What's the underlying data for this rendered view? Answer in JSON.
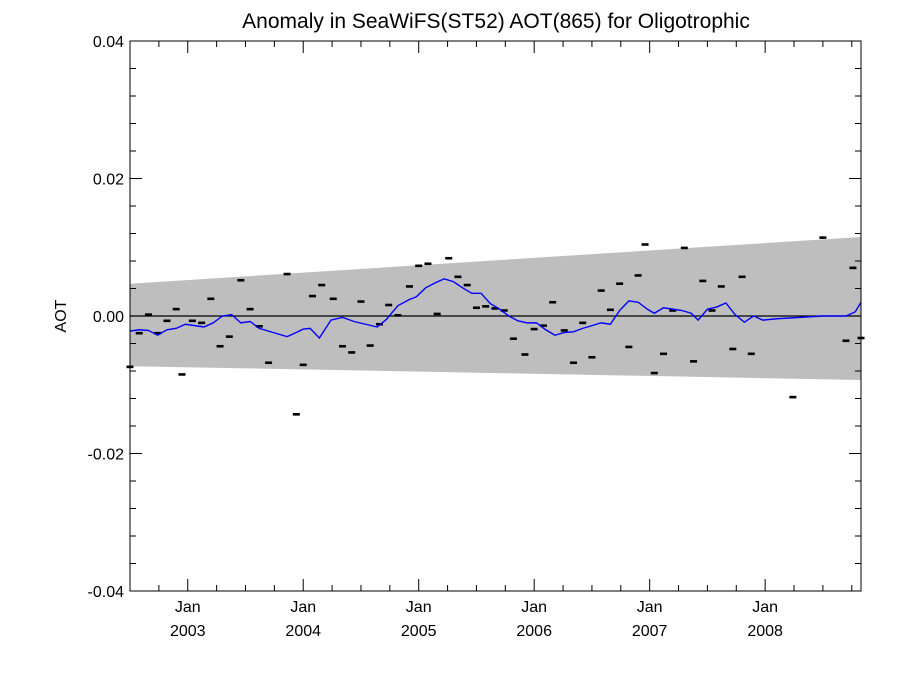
{
  "chart_data": {
    "type": "line",
    "title": "Anomaly in SeaWiFS(ST52) AOT(865) for Oligotrophic",
    "ylabel": "AOT",
    "xlabel": "",
    "ylim": [
      -0.04,
      0.04
    ],
    "xlim": [
      2002.5,
      2008.83
    ],
    "grid": false,
    "y_ticks": [
      {
        "value": 0.04,
        "label": "0.04"
      },
      {
        "value": 0.02,
        "label": "0.02"
      },
      {
        "value": 0.0,
        "label": "0.00"
      },
      {
        "value": -0.02,
        "label": "-0.02"
      },
      {
        "value": -0.04,
        "label": "-0.04"
      }
    ],
    "x_ticks": [
      {
        "value": 2003.0,
        "month": "Jan",
        "year": "2003"
      },
      {
        "value": 2004.0,
        "month": "Jan",
        "year": "2004"
      },
      {
        "value": 2005.0,
        "month": "Jan",
        "year": "2005"
      },
      {
        "value": 2006.0,
        "month": "Jan",
        "year": "2006"
      },
      {
        "value": 2007.0,
        "month": "Jan",
        "year": "2007"
      },
      {
        "value": 2008.0,
        "month": "Jan",
        "year": "2008"
      }
    ],
    "band": {
      "x": [
        2002.5,
        2008.83
      ],
      "upper": [
        0.0047,
        0.0115
      ],
      "lower": [
        -0.0073,
        -0.0093
      ],
      "color": "#bebebe"
    },
    "zero_line": 0.0,
    "series": [
      {
        "kind": "line",
        "color": "#0000ff",
        "points": [
          [
            2002.5,
            -0.0022
          ],
          [
            2002.58,
            -0.002
          ],
          [
            2002.66,
            -0.0021
          ],
          [
            2002.74,
            -0.0028
          ],
          [
            2002.82,
            -0.002
          ],
          [
            2002.9,
            -0.0018
          ],
          [
            2002.98,
            -0.0012
          ],
          [
            2003.06,
            -0.0014
          ],
          [
            2003.14,
            -0.0016
          ],
          [
            2003.22,
            -0.001
          ],
          [
            2003.3,
            0.0
          ],
          [
            2003.38,
            0.0002
          ],
          [
            2003.46,
            -0.001
          ],
          [
            2003.54,
            -0.0008
          ],
          [
            2003.62,
            -0.0018
          ],
          [
            2003.7,
            -0.0022
          ],
          [
            2003.78,
            -0.0026
          ],
          [
            2003.86,
            -0.003
          ],
          [
            2003.94,
            -0.0024
          ],
          [
            2004.0,
            -0.0019
          ],
          [
            2004.06,
            -0.0018
          ],
          [
            2004.14,
            -0.0032
          ],
          [
            2004.24,
            -0.0006
          ],
          [
            2004.34,
            -0.0002
          ],
          [
            2004.44,
            -0.0008
          ],
          [
            2004.54,
            -0.0012
          ],
          [
            2004.64,
            -0.0016
          ],
          [
            2004.72,
            -0.0005
          ],
          [
            2004.82,
            0.0015
          ],
          [
            2004.92,
            0.0024
          ],
          [
            2004.98,
            0.0028
          ],
          [
            2005.06,
            0.0041
          ],
          [
            2005.14,
            0.0048
          ],
          [
            2005.22,
            0.0054
          ],
          [
            2005.3,
            0.005
          ],
          [
            2005.38,
            0.0041
          ],
          [
            2005.46,
            0.0033
          ],
          [
            2005.54,
            0.0033
          ],
          [
            2005.62,
            0.0018
          ],
          [
            2005.7,
            0.001
          ],
          [
            2005.78,
            0.0
          ],
          [
            2005.86,
            -0.0007
          ],
          [
            2005.94,
            -0.001
          ],
          [
            2006.02,
            -0.001
          ],
          [
            2006.1,
            -0.002
          ],
          [
            2006.18,
            -0.0028
          ],
          [
            2006.26,
            -0.0024
          ],
          [
            2006.34,
            -0.0023
          ],
          [
            2006.42,
            -0.0018
          ],
          [
            2006.5,
            -0.0014
          ],
          [
            2006.58,
            -0.001
          ],
          [
            2006.66,
            -0.0012
          ],
          [
            2006.74,
            0.0008
          ],
          [
            2006.82,
            0.0022
          ],
          [
            2006.9,
            0.002
          ],
          [
            2006.98,
            0.001
          ],
          [
            2007.04,
            0.0004
          ],
          [
            2007.12,
            0.0012
          ],
          [
            2007.2,
            0.001
          ],
          [
            2007.28,
            0.0008
          ],
          [
            2007.36,
            0.0004
          ],
          [
            2007.42,
            -0.0006
          ],
          [
            2007.5,
            0.001
          ],
          [
            2007.58,
            0.0013
          ],
          [
            2007.66,
            0.0019
          ],
          [
            2007.74,
            0.0002
          ],
          [
            2007.82,
            -0.0009
          ],
          [
            2007.9,
            0.0
          ],
          [
            2007.98,
            -0.0006
          ],
          [
            2008.1,
            -0.0004
          ],
          [
            2008.3,
            -0.0002
          ],
          [
            2008.5,
            0.0
          ],
          [
            2008.7,
            0.0
          ],
          [
            2008.78,
            0.0006
          ],
          [
            2008.83,
            0.002
          ]
        ]
      },
      {
        "kind": "points",
        "color": "#000000",
        "points": [
          [
            2002.5,
            -0.0074
          ],
          [
            2002.58,
            -0.0025
          ],
          [
            2002.66,
            0.0002
          ],
          [
            2002.74,
            -0.0025
          ],
          [
            2002.82,
            -0.0007
          ],
          [
            2002.9,
            0.001
          ],
          [
            2002.95,
            -0.0085
          ],
          [
            2003.04,
            -0.0007
          ],
          [
            2003.12,
            -0.001
          ],
          [
            2003.2,
            0.0025
          ],
          [
            2003.28,
            -0.0044
          ],
          [
            2003.36,
            -0.003
          ],
          [
            2003.46,
            0.0052
          ],
          [
            2003.54,
            0.001
          ],
          [
            2003.62,
            -0.0015
          ],
          [
            2003.7,
            -0.0068
          ],
          [
            2003.86,
            0.0061
          ],
          [
            2003.94,
            -0.0143
          ],
          [
            2004.0,
            -0.0071
          ],
          [
            2004.08,
            0.0029
          ],
          [
            2004.16,
            0.0045
          ],
          [
            2004.26,
            0.0025
          ],
          [
            2004.34,
            -0.0044
          ],
          [
            2004.42,
            -0.0053
          ],
          [
            2004.5,
            0.0021
          ],
          [
            2004.58,
            -0.0043
          ],
          [
            2004.66,
            -0.0012
          ],
          [
            2004.74,
            0.0016
          ],
          [
            2004.82,
            0.0001
          ],
          [
            2004.92,
            0.0043
          ],
          [
            2005.0,
            0.0073
          ],
          [
            2005.08,
            0.0076
          ],
          [
            2005.16,
            0.0003
          ],
          [
            2005.26,
            0.0084
          ],
          [
            2005.34,
            0.0057
          ],
          [
            2005.42,
            0.0045
          ],
          [
            2005.5,
            0.0012
          ],
          [
            2005.58,
            0.0014
          ],
          [
            2005.66,
            0.0011
          ],
          [
            2005.74,
            0.0008
          ],
          [
            2005.82,
            -0.0033
          ],
          [
            2005.92,
            -0.0056
          ],
          [
            2006.0,
            -0.0019
          ],
          [
            2006.08,
            -0.0014
          ],
          [
            2006.16,
            0.002
          ],
          [
            2006.26,
            -0.0021
          ],
          [
            2006.34,
            -0.0068
          ],
          [
            2006.42,
            -0.001
          ],
          [
            2006.5,
            -0.006
          ],
          [
            2006.58,
            0.0037
          ],
          [
            2006.66,
            0.0009
          ],
          [
            2006.74,
            0.0047
          ],
          [
            2006.82,
            -0.0045
          ],
          [
            2006.9,
            0.0059
          ],
          [
            2006.96,
            0.0104
          ],
          [
            2007.04,
            -0.0083
          ],
          [
            2007.12,
            -0.0055
          ],
          [
            2007.2,
            0.0008
          ],
          [
            2007.3,
            0.0099
          ],
          [
            2007.38,
            -0.0066
          ],
          [
            2007.46,
            0.0051
          ],
          [
            2007.54,
            0.0008
          ],
          [
            2007.62,
            0.0043
          ],
          [
            2007.72,
            -0.0048
          ],
          [
            2007.8,
            0.0057
          ],
          [
            2007.88,
            -0.0055
          ],
          [
            2008.24,
            -0.0118
          ],
          [
            2008.5,
            0.0114
          ],
          [
            2008.7,
            -0.0036
          ],
          [
            2008.76,
            0.007
          ],
          [
            2008.83,
            -0.0032
          ]
        ]
      }
    ]
  }
}
